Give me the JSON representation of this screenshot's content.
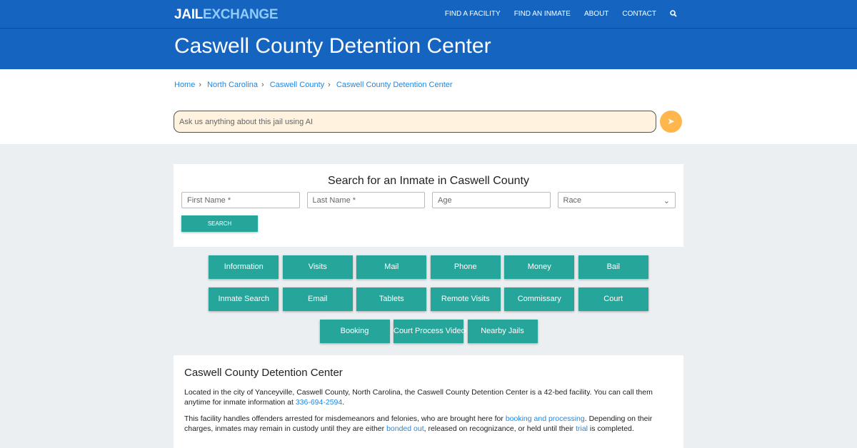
{
  "nav": {
    "logo_a": "JAIL",
    "logo_b": "EXCHANGE",
    "items": [
      "FIND A FACILITY",
      "FIND AN INMATE",
      "ABOUT",
      "CONTACT"
    ],
    "search_icon": "search-icon"
  },
  "title": "Caswell County Detention Center",
  "breadcrumb": [
    "Home",
    "North Carolina",
    "Caswell County",
    "Caswell County Detention Center"
  ],
  "ai": {
    "placeholder": "Ask us anything about this jail using AI",
    "send_icon": "paper-plane-icon"
  },
  "search": {
    "heading": "Search for an Inmate in Caswell County",
    "first": "First Name *",
    "last": "Last Name *",
    "age": "Age",
    "race": "Race",
    "button": "SEARCH"
  },
  "buttons": [
    "Information",
    "Visits",
    "Mail",
    "Phone",
    "Money",
    "Bail",
    "Inmate Search",
    "Email",
    "Tablets",
    "Remote Visits",
    "Commissary",
    "Court",
    "Booking",
    "Court Process Video",
    "Nearby Jails"
  ],
  "info": {
    "heading": "Caswell County Detention Center",
    "p1_a": "Located in the city of Yanceyville, Caswell County, North Carolina, the Caswell County Detention Center is a 42-bed facility. You can call them anytime for inmate information at ",
    "phone": "336-694-2594",
    "p1_b": ".",
    "p2_a": "This facility handles offenders arrested for misdemeanors and felonies, who are brought here for ",
    "link1": "booking and processing",
    "p2_b": ". Depending on their charges, inmates may remain in custody until they are either ",
    "link2": "bonded out",
    "p2_c": ", released on recognizance, or held until their ",
    "link3": "trial",
    "p2_d": " is completed."
  },
  "colors": {
    "brand": "#1565c0",
    "teal": "#26a69a",
    "accent": "#ffb74d"
  }
}
